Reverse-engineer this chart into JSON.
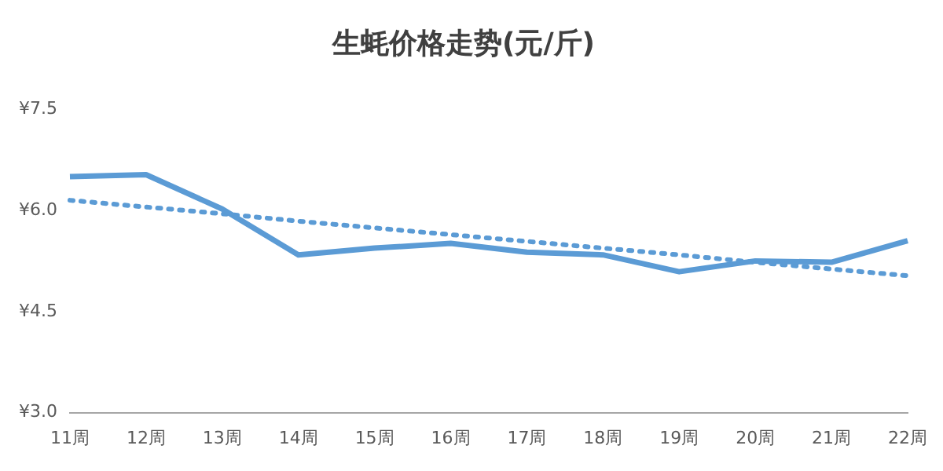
{
  "chart_data": {
    "type": "line",
    "title": "生蚝价格走势(元/斤)",
    "categories": [
      "11周",
      "12周",
      "13周",
      "14周",
      "15周",
      "16周",
      "17周",
      "18周",
      "19周",
      "20周",
      "21周",
      "22周"
    ],
    "series": [
      {
        "color": "#5b9bd5",
        "values": [
          6.5,
          6.53,
          6.02,
          5.34,
          5.44,
          5.51,
          5.38,
          5.34,
          5.09,
          5.25,
          5.23,
          5.55
        ],
        "line_style": "solid"
      },
      {
        "color": "#5b9bd5",
        "values": [
          6.15,
          6.05,
          5.95,
          5.84,
          5.74,
          5.64,
          5.54,
          5.44,
          5.34,
          5.23,
          5.13,
          5.03
        ],
        "line_style": "dotted"
      }
    ],
    "ylim": [
      3.0,
      7.5
    ],
    "yticks": [
      {
        "value": 3.0,
        "label": "¥3.0"
      },
      {
        "value": 4.5,
        "label": "¥4.5"
      },
      {
        "value": 6.0,
        "label": "¥6.0"
      },
      {
        "value": 7.5,
        "label": "¥7.5"
      }
    ],
    "grid": false,
    "legend": false,
    "marker": "none"
  }
}
